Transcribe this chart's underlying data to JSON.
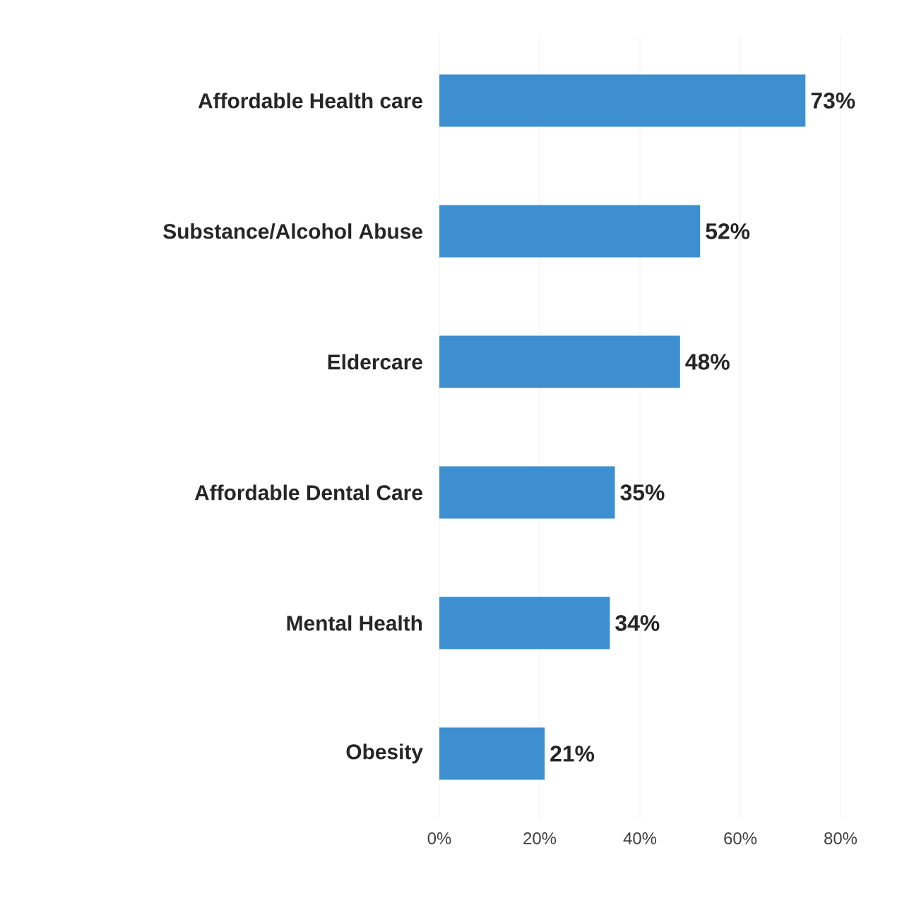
{
  "chart_data": {
    "type": "bar",
    "orientation": "horizontal",
    "categories": [
      "Affordable Health care",
      "Substance/Alcohol Abuse",
      "Eldercare",
      "Affordable Dental Care",
      "Mental Health",
      "Obesity"
    ],
    "values": [
      73,
      52,
      48,
      35,
      34,
      21
    ],
    "value_labels": [
      "73%",
      "52%",
      "48%",
      "35%",
      "34%",
      "21%"
    ],
    "color": "#3d8fcf",
    "xlim": [
      0,
      80
    ],
    "xticks": [
      {
        "value": 0,
        "label": "0%"
      },
      {
        "value": 20,
        "label": "20%"
      },
      {
        "value": 40,
        "label": "40%"
      },
      {
        "value": 60,
        "label": "60%"
      },
      {
        "value": 80,
        "label": "80%"
      }
    ],
    "grid": "x"
  }
}
